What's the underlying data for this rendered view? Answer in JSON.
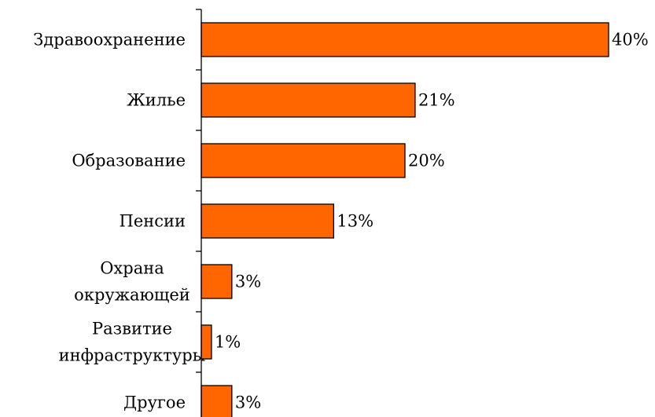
{
  "chart_data": {
    "type": "bar",
    "orientation": "horizontal",
    "categories": [
      [
        "Здравоохранение"
      ],
      [
        "Жилье"
      ],
      [
        "Образование"
      ],
      [
        "Пенсии"
      ],
      [
        "Охрана",
        "окружающей"
      ],
      [
        "Развитие",
        "инфраструктуры"
      ],
      [
        "Другое"
      ]
    ],
    "values": [
      40,
      21,
      20,
      13,
      3,
      1,
      3
    ],
    "data_labels": [
      "40%",
      "21%",
      "20%",
      "13%",
      "3%",
      "1%",
      "3%"
    ],
    "xlim": [
      0,
      40
    ],
    "grid": false,
    "legend": "none",
    "bar_color": "#FF6600",
    "bar_edge_color": "#000000"
  }
}
